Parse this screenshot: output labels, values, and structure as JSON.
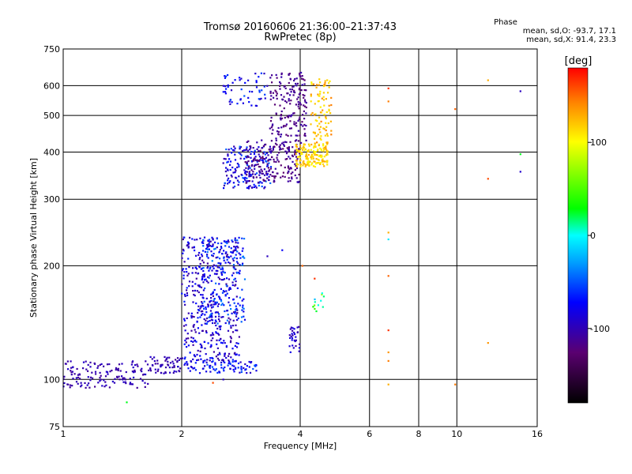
{
  "header": {
    "title_line1": "Tromsø 20160606 21:36:00–21:37:43",
    "title_line2": "RwPretec (8p)",
    "phase_heading": "Phase",
    "phase_stats_o": "mean, sd,O:  -93.7, 17.1",
    "phase_stats_x": "mean, sd,X:   91.4, 23.3"
  },
  "chart_data": {
    "type": "scatter",
    "title": "Tromsø 20160606 21:36:00–21:37:43",
    "subtitle": "RwPretec (8p)",
    "xlabel": "Frequency [MHz]",
    "ylabel": "Stationary phase Virtual Height [km]",
    "x_scale": "log",
    "y_scale": "log",
    "xlim": [
      1,
      16
    ],
    "ylim": [
      75,
      750
    ],
    "x_ticks": [
      1,
      2,
      4,
      6,
      8,
      10,
      16
    ],
    "x_tick_labels": [
      "1",
      "2",
      "4",
      "6",
      "8",
      "10",
      "16"
    ],
    "y_ticks": [
      75,
      100,
      200,
      300,
      400,
      500,
      600,
      750
    ],
    "y_tick_labels": [
      "75",
      "100",
      "200",
      "300",
      "400",
      "500",
      "600",
      "750"
    ],
    "grid": true,
    "colorbar": {
      "label": "[deg]",
      "range": [
        -180,
        180
      ],
      "ticks": [
        100,
        0,
        -100
      ],
      "tick_labels": [
        "100",
        "0",
        "-100"
      ],
      "colormap": [
        "#000000",
        "#5a0070",
        "#0000ff",
        "#00ffff",
        "#00ff00",
        "#ffff00",
        "#ff8000",
        "#ff0000"
      ]
    },
    "series": [
      {
        "name": "",
        "regions": [
          {
            "x": [
              1.0,
              1.65
            ],
            "y": [
              95,
              112
            ],
            "phase": [
              -115,
              -95
            ],
            "n": 140
          },
          {
            "x": [
              1.65,
              2.0
            ],
            "y": [
              103,
              115
            ],
            "phase": [
              -115,
              -95
            ],
            "n": 60
          },
          {
            "x": [
              2.0,
              3.1
            ],
            "y": [
              104,
              112
            ],
            "phase": [
              -100,
              -60
            ],
            "n": 90
          },
          {
            "x": [
              2.0,
              2.8
            ],
            "y": [
              112,
              238
            ],
            "phase": [
              -115,
              -70
            ],
            "n": 450
          },
          {
            "x": [
              2.25,
              2.9
            ],
            "y": [
              140,
              238
            ],
            "phase": [
              -90,
              -50
            ],
            "n": 160
          },
          {
            "x": [
              2.55,
              3.4
            ],
            "y": [
              320,
              415
            ],
            "phase": [
              -110,
              -55
            ],
            "n": 170
          },
          {
            "x": [
              2.9,
              4.0
            ],
            "y": [
              330,
              430
            ],
            "phase": [
              -130,
              -105
            ],
            "n": 180
          },
          {
            "x": [
              3.35,
              4.15
            ],
            "y": [
              400,
              650
            ],
            "phase": [
              -130,
              -105
            ],
            "n": 190
          },
          {
            "x": [
              2.55,
              3.3
            ],
            "y": [
              530,
              650
            ],
            "phase": [
              -105,
              -60
            ],
            "n": 55
          },
          {
            "x": [
              3.9,
              4.7
            ],
            "y": [
              365,
              420
            ],
            "phase": [
              75,
              115
            ],
            "n": 160
          },
          {
            "x": [
              4.25,
              4.8
            ],
            "y": [
              420,
              630
            ],
            "phase": [
              80,
              130
            ],
            "n": 90
          },
          {
            "x": [
              3.75,
              4.0
            ],
            "y": [
              118,
              138
            ],
            "phase": [
              -110,
              -85
            ],
            "n": 30
          },
          {
            "x": [
              4.3,
              4.6
            ],
            "y": [
              150,
              170
            ],
            "phase": [
              -40,
              60
            ],
            "n": 12
          }
        ],
        "points": [
          {
            "x": 1.45,
            "y": 87,
            "phase": 20
          },
          {
            "x": 6.7,
            "y": 97,
            "phase": 110
          },
          {
            "x": 6.7,
            "y": 112,
            "phase": 130
          },
          {
            "x": 6.7,
            "y": 118,
            "phase": 120
          },
          {
            "x": 6.7,
            "y": 135,
            "phase": 160
          },
          {
            "x": 6.7,
            "y": 188,
            "phase": 140
          },
          {
            "x": 6.7,
            "y": 235,
            "phase": -30
          },
          {
            "x": 6.7,
            "y": 245,
            "phase": 110
          },
          {
            "x": 6.7,
            "y": 545,
            "phase": 130
          },
          {
            "x": 6.7,
            "y": 590,
            "phase": 160
          },
          {
            "x": 9.9,
            "y": 97,
            "phase": 130
          },
          {
            "x": 9.9,
            "y": 520,
            "phase": 140
          },
          {
            "x": 12.0,
            "y": 125,
            "phase": 120
          },
          {
            "x": 12.0,
            "y": 340,
            "phase": 150
          },
          {
            "x": 12.0,
            "y": 620,
            "phase": 110
          },
          {
            "x": 14.5,
            "y": 355,
            "phase": -95
          },
          {
            "x": 14.5,
            "y": 395,
            "phase": 20
          },
          {
            "x": 14.5,
            "y": 580,
            "phase": -100
          },
          {
            "x": 3.6,
            "y": 220,
            "phase": -80
          },
          {
            "x": 3.3,
            "y": 212,
            "phase": -100
          },
          {
            "x": 2.4,
            "y": 98,
            "phase": 150
          },
          {
            "x": 2.55,
            "y": 100,
            "phase": -100
          },
          {
            "x": 4.05,
            "y": 200,
            "phase": 140
          },
          {
            "x": 4.35,
            "y": 185,
            "phase": 160
          }
        ]
      }
    ]
  }
}
